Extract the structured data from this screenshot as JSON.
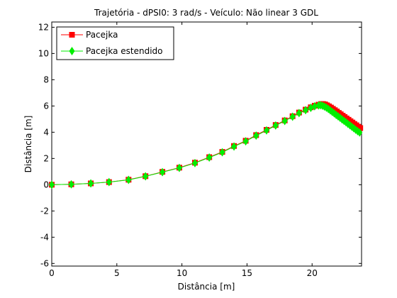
{
  "chart_data": {
    "type": "line",
    "title": "Trajetória - dPSI0: 3 rad/s - Veículo: Não linear 3 GDL",
    "xlabel": "Distância [m]",
    "ylabel": "Distância [m]",
    "xlim": [
      0,
      23.8
    ],
    "ylim": [
      -6.2,
      12.4
    ],
    "xticks": [
      0,
      5,
      10,
      15,
      20
    ],
    "yticks": [
      -6,
      -4,
      -2,
      0,
      2,
      4,
      6,
      8,
      10,
      12
    ],
    "grid": false,
    "legend_position": "top-left",
    "series": [
      {
        "name": "Pacejka",
        "color": "#ff0000",
        "marker": "square",
        "x": [
          0,
          1.5,
          3.0,
          4.4,
          5.9,
          7.2,
          8.5,
          9.8,
          11.0,
          12.1,
          13.1,
          14.0,
          14.9,
          15.7,
          16.5,
          17.2,
          17.9,
          18.5,
          19.0,
          19.5,
          19.9,
          20.2,
          20.5,
          20.7,
          20.85,
          21.0,
          21.15,
          21.3,
          21.45,
          21.6,
          21.75,
          21.9,
          22.05,
          22.2,
          22.35,
          22.5,
          22.65,
          22.8,
          22.95,
          23.1,
          23.25,
          23.4,
          23.55,
          23.7
        ],
        "y": [
          0,
          0.03,
          0.1,
          0.2,
          0.38,
          0.65,
          0.98,
          1.3,
          1.68,
          2.1,
          2.5,
          2.95,
          3.35,
          3.78,
          4.18,
          4.55,
          4.9,
          5.22,
          5.5,
          5.72,
          5.9,
          6.02,
          6.1,
          6.15,
          6.15,
          6.12,
          6.05,
          5.97,
          5.88,
          5.78,
          5.68,
          5.58,
          5.47,
          5.37,
          5.26,
          5.16,
          5.05,
          4.95,
          4.84,
          4.74,
          4.63,
          4.53,
          4.42,
          4.32
        ]
      },
      {
        "name": "Pacejka estendido",
        "color": "#00ee00",
        "marker": "diamond",
        "x": [
          0,
          1.5,
          3.0,
          4.4,
          5.9,
          7.2,
          8.5,
          9.8,
          11.0,
          12.1,
          13.1,
          14.0,
          14.9,
          15.7,
          16.5,
          17.2,
          17.9,
          18.5,
          19.0,
          19.5,
          19.9,
          20.2,
          20.5,
          20.65,
          20.8,
          20.95,
          21.1,
          21.25,
          21.4,
          21.55,
          21.7,
          21.85,
          22.0,
          22.15,
          22.3,
          22.45,
          22.6,
          22.75,
          22.9,
          23.05,
          23.2,
          23.35,
          23.5,
          23.65
        ],
        "y": [
          0,
          0.03,
          0.1,
          0.2,
          0.37,
          0.64,
          0.96,
          1.28,
          1.65,
          2.07,
          2.47,
          2.91,
          3.31,
          3.74,
          4.14,
          4.51,
          4.86,
          5.18,
          5.46,
          5.68,
          5.86,
          5.98,
          6.05,
          6.06,
          6.02,
          5.95,
          5.87,
          5.77,
          5.66,
          5.55,
          5.44,
          5.32,
          5.21,
          5.1,
          4.98,
          4.87,
          4.76,
          4.64,
          4.53,
          4.42,
          4.3,
          4.19,
          4.08,
          3.98
        ]
      }
    ]
  }
}
